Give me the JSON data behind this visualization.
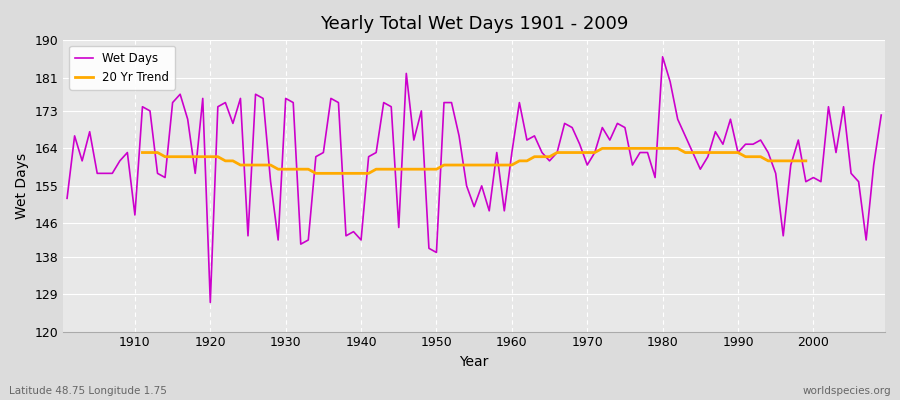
{
  "title": "Yearly Total Wet Days 1901 - 2009",
  "xlabel": "Year",
  "ylabel": "Wet Days",
  "subtitle": "Latitude 48.75 Longitude 1.75",
  "watermark": "worldspecies.org",
  "ylim": [
    120,
    190
  ],
  "yticks": [
    120,
    129,
    138,
    146,
    155,
    164,
    173,
    181,
    190
  ],
  "legend_labels": [
    "Wet Days",
    "20 Yr Trend"
  ],
  "wet_days_color": "#cc00cc",
  "trend_color": "#ffaa00",
  "background_color": "#dcdcdc",
  "plot_bg_color": "#e8e8e8",
  "years": [
    1901,
    1902,
    1903,
    1904,
    1905,
    1906,
    1907,
    1908,
    1909,
    1910,
    1911,
    1912,
    1913,
    1914,
    1915,
    1916,
    1917,
    1918,
    1919,
    1920,
    1921,
    1922,
    1923,
    1924,
    1925,
    1926,
    1927,
    1928,
    1929,
    1930,
    1931,
    1932,
    1933,
    1934,
    1935,
    1936,
    1937,
    1938,
    1939,
    1940,
    1941,
    1942,
    1943,
    1944,
    1945,
    1946,
    1947,
    1948,
    1949,
    1950,
    1951,
    1952,
    1953,
    1954,
    1955,
    1956,
    1957,
    1958,
    1959,
    1960,
    1961,
    1962,
    1963,
    1964,
    1965,
    1966,
    1967,
    1968,
    1969,
    1970,
    1971,
    1972,
    1973,
    1974,
    1975,
    1976,
    1977,
    1978,
    1979,
    1980,
    1981,
    1982,
    1983,
    1984,
    1985,
    1986,
    1987,
    1988,
    1989,
    1990,
    1991,
    1992,
    1993,
    1994,
    1995,
    1996,
    1997,
    1998,
    1999,
    2000,
    2001,
    2002,
    2003,
    2004,
    2005,
    2006,
    2007,
    2008,
    2009
  ],
  "wet_days": [
    152,
    167,
    161,
    168,
    158,
    158,
    158,
    161,
    163,
    148,
    174,
    173,
    158,
    157,
    175,
    177,
    171,
    158,
    176,
    127,
    174,
    175,
    170,
    176,
    143,
    177,
    176,
    156,
    142,
    176,
    175,
    141,
    142,
    162,
    163,
    176,
    175,
    143,
    144,
    142,
    162,
    163,
    175,
    174,
    145,
    182,
    166,
    173,
    140,
    139,
    175,
    175,
    167,
    155,
    150,
    155,
    149,
    163,
    149,
    163,
    175,
    166,
    167,
    163,
    161,
    163,
    170,
    169,
    165,
    160,
    163,
    169,
    166,
    170,
    169,
    160,
    163,
    163,
    157,
    186,
    180,
    171,
    167,
    163,
    159,
    162,
    168,
    165,
    171,
    163,
    165,
    165,
    166,
    163,
    158,
    143,
    160,
    166,
    156,
    157,
    156,
    174,
    163,
    174,
    158,
    156,
    142,
    160,
    172
  ],
  "trend": [
    null,
    null,
    null,
    null,
    null,
    null,
    null,
    null,
    null,
    null,
    163,
    163,
    163,
    162,
    162,
    162,
    162,
    162,
    162,
    162,
    162,
    161,
    161,
    160,
    160,
    160,
    160,
    160,
    159,
    159,
    159,
    159,
    159,
    158,
    158,
    158,
    158,
    158,
    158,
    158,
    158,
    159,
    159,
    159,
    159,
    159,
    159,
    159,
    159,
    159,
    160,
    160,
    160,
    160,
    160,
    160,
    160,
    160,
    160,
    160,
    161,
    161,
    162,
    162,
    162,
    163,
    163,
    163,
    163,
    163,
    163,
    164,
    164,
    164,
    164,
    164,
    164,
    164,
    164,
    164,
    164,
    164,
    163,
    163,
    163,
    163,
    163,
    163,
    163,
    163,
    162,
    162,
    162,
    161,
    161,
    161,
    161,
    161,
    161,
    null,
    null,
    null,
    null,
    null,
    null,
    null,
    null,
    null,
    null
  ]
}
